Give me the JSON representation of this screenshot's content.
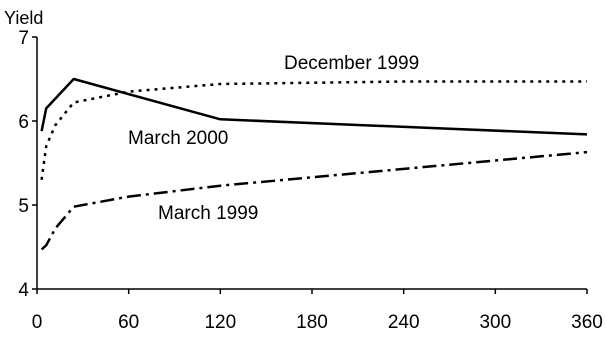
{
  "chart_data": {
    "type": "line",
    "ylabel": "Yield",
    "xlabel": "",
    "xlim": [
      0,
      360
    ],
    "ylim": [
      4,
      7
    ],
    "x_ticks": [
      0,
      60,
      120,
      180,
      240,
      300,
      360
    ],
    "y_ticks": [
      4,
      5,
      6,
      7
    ],
    "grid": false,
    "series": [
      {
        "name": "December 1999",
        "style": "dotted",
        "x": [
          3,
          6,
          12,
          24,
          60,
          120,
          240,
          360
        ],
        "y": [
          5.3,
          5.7,
          5.95,
          6.22,
          6.35,
          6.44,
          6.47,
          6.47
        ]
      },
      {
        "name": "March 2000",
        "style": "solid",
        "x": [
          3,
          6,
          24,
          120,
          360
        ],
        "y": [
          5.88,
          6.15,
          6.5,
          6.02,
          5.84
        ]
      },
      {
        "name": "March 1999",
        "style": "dash-dot",
        "x": [
          3,
          6,
          12,
          24,
          60,
          120,
          360
        ],
        "y": [
          4.47,
          4.52,
          4.72,
          4.98,
          5.1,
          5.23,
          5.63
        ]
      }
    ]
  }
}
